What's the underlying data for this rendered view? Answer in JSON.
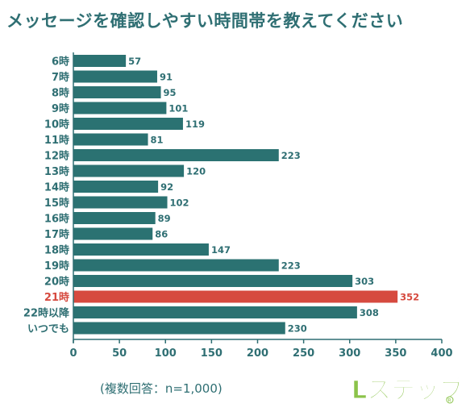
{
  "title": "メッセージを確認しやすい時間帯を教えてください",
  "note": "(複数回答：n=1,000)",
  "logo_text": "Lステップ",
  "colors": {
    "bar": "#2b7272",
    "highlight": "#d64a3f",
    "text": "#2f6f73",
    "grid": "#2f6f73"
  },
  "chart_data": {
    "type": "bar",
    "orientation": "horizontal",
    "categories": [
      "6時",
      "7時",
      "8時",
      "9時",
      "10時",
      "11時",
      "12時",
      "13時",
      "14時",
      "15時",
      "16時",
      "17時",
      "18時",
      "19時",
      "20時",
      "21時",
      "22時以降",
      "いつでも"
    ],
    "values": [
      57,
      91,
      95,
      101,
      119,
      81,
      223,
      120,
      92,
      102,
      89,
      86,
      147,
      223,
      303,
      352,
      308,
      230
    ],
    "highlight_category": "21時",
    "xlim": [
      0,
      400
    ],
    "xticks": [
      0,
      50,
      100,
      150,
      200,
      250,
      300,
      350,
      400
    ],
    "grid": false,
    "legend": "none"
  }
}
